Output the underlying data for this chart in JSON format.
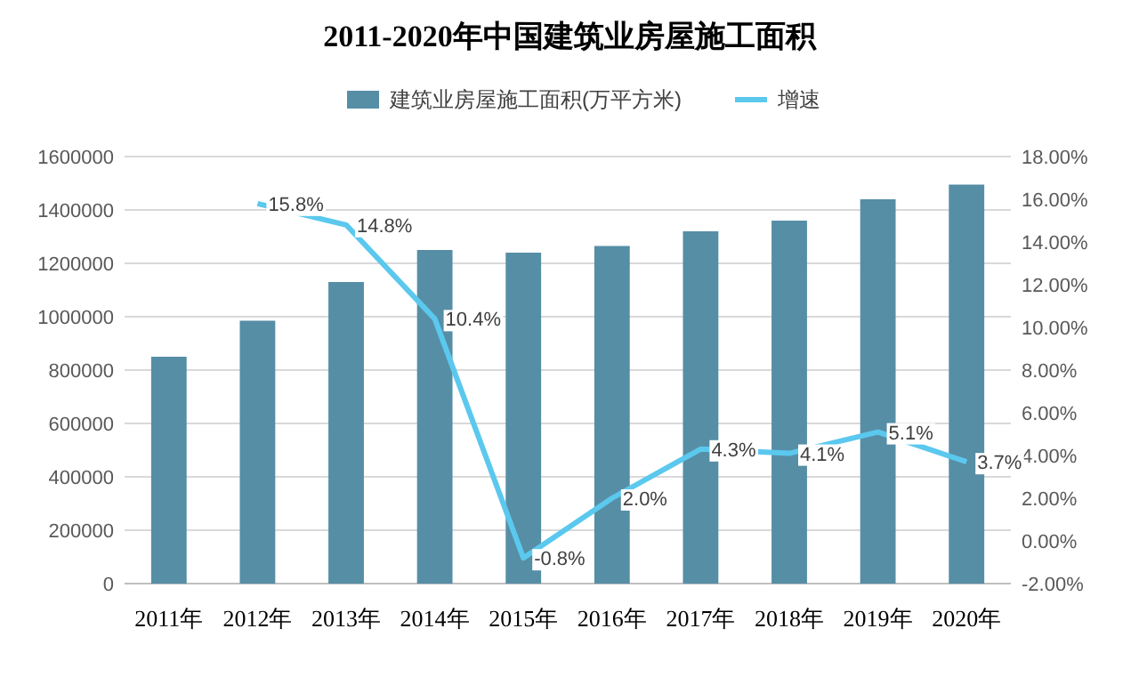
{
  "chart_data": {
    "type": "bar",
    "title": "2011-2020年中国建筑业房屋施工面积",
    "categories": [
      "2011年",
      "2012年",
      "2013年",
      "2014年",
      "2015年",
      "2016年",
      "2017年",
      "2018年",
      "2019年",
      "2020年"
    ],
    "series": [
      {
        "name": "建筑业房屋施工面积(万平方米)",
        "color": "#568ea6",
        "values": [
          850000,
          985000,
          1130000,
          1250000,
          1240000,
          1265000,
          1320000,
          1360000,
          1440000,
          1495000
        ]
      },
      {
        "name": "增速",
        "type": "line",
        "axis": "y2",
        "color": "#5bc8ee",
        "values": [
          null,
          15.8,
          14.8,
          10.4,
          -0.8,
          2.0,
          4.3,
          4.1,
          5.1,
          3.7
        ],
        "value_labels": [
          null,
          "15.8%",
          "14.8%",
          "10.4%",
          "-0.8%",
          "2.0%",
          "4.3%",
          "4.1%",
          "5.1%",
          "3.7%"
        ]
      }
    ],
    "ylim": [
      0,
      1600000
    ],
    "yticks": [
      0,
      200000,
      400000,
      600000,
      800000,
      1000000,
      1200000,
      1400000,
      1600000
    ],
    "y2lim": [
      -2,
      18
    ],
    "y2ticks": [
      {
        "value": -2,
        "label": "-2.00%"
      },
      {
        "value": 0,
        "label": "0.00%"
      },
      {
        "value": 2,
        "label": "2.00%"
      },
      {
        "value": 4,
        "label": "4.00%"
      },
      {
        "value": 6,
        "label": "6.00%"
      },
      {
        "value": 8,
        "label": "8.00%"
      },
      {
        "value": 10,
        "label": "10.00%"
      },
      {
        "value": 12,
        "label": "12.00%"
      },
      {
        "value": 14,
        "label": "14.00%"
      },
      {
        "value": 16,
        "label": "16.00%"
      },
      {
        "value": 18,
        "label": "18.00%"
      }
    ],
    "grid": "y",
    "legend": "top",
    "marker": "none"
  }
}
